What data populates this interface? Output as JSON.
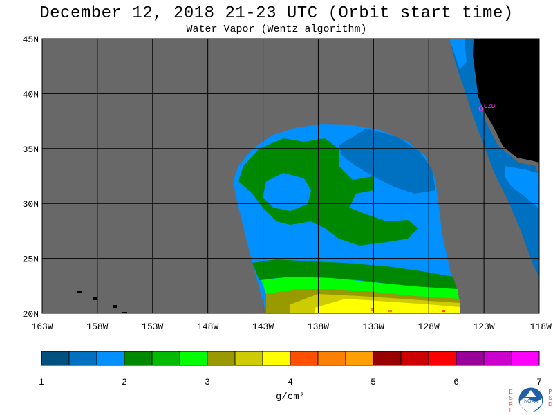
{
  "header": {
    "title": "December 12, 2018  21-23 UTC  (Orbit start time)",
    "subtitle": "Water Vapor (Wentz algorithm)"
  },
  "map": {
    "lat_labels": [
      "45N",
      "40N",
      "35N",
      "30N",
      "25N",
      "20N"
    ],
    "lon_labels": [
      "163W",
      "158W",
      "153W",
      "148W",
      "143W",
      "138W",
      "133W",
      "128W",
      "123W",
      "118W"
    ],
    "city_marker": "CZD",
    "no_data_color": "#686868",
    "land_color": "#000000"
  },
  "colorbar": {
    "colors": [
      "#005080",
      "#0070c0",
      "#0090ff",
      "#008800",
      "#00bb00",
      "#00ff00",
      "#999900",
      "#cccc00",
      "#ffff00",
      "#ff5000",
      "#ff8000",
      "#ffa000",
      "#990000",
      "#cc0000",
      "#ff0000",
      "#990099",
      "#cc00cc",
      "#ff00ff"
    ],
    "tick_labels": [
      "1",
      "2",
      "3",
      "4",
      "5",
      "6",
      "7"
    ],
    "units": "g/cm²"
  },
  "logo": {
    "left_letters": [
      "E",
      "S",
      "R",
      "L"
    ],
    "right_letters": [
      "P",
      "S",
      "D"
    ],
    "name": "NOAA"
  }
}
